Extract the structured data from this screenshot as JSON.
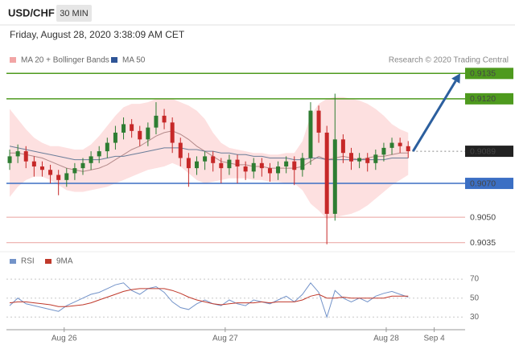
{
  "header": {
    "symbol": "USD/CHF",
    "interval": "30 MIN",
    "timestamp": "Friday, August 28, 2020 3:38:09 AM CET"
  },
  "chart_data": [
    {
      "type": "candlestick",
      "credit": "Research © 2020 Trading Central",
      "xlim": [
        -0.4,
        56
      ],
      "ylim": [
        0.9032,
        0.9138
      ],
      "up_color": "#2e7d32",
      "down_color": "#c62828",
      "candles": {
        "open": [
          0.9082,
          0.9086,
          0.9089,
          0.9083,
          0.908,
          0.9078,
          0.9075,
          0.9072,
          0.9076,
          0.9079,
          0.9082,
          0.9086,
          0.9089,
          0.9094,
          0.91,
          0.9105,
          0.9101,
          0.9096,
          0.9103,
          0.911,
          0.9106,
          0.9094,
          0.9085,
          0.9079,
          0.9083,
          0.9086,
          0.9082,
          0.9079,
          0.9084,
          0.908,
          0.9077,
          0.9082,
          0.9079,
          0.9076,
          0.908,
          0.9083,
          0.9078,
          0.9085,
          0.9113,
          0.91,
          0.9052,
          0.9096,
          0.9088,
          0.9083,
          0.9085,
          0.9082,
          0.9087,
          0.9091,
          0.9094,
          0.9092
        ],
        "high": [
          0.909,
          0.9093,
          0.9092,
          0.9086,
          0.9083,
          0.9081,
          0.9078,
          0.9079,
          0.9082,
          0.9085,
          0.9089,
          0.9092,
          0.9097,
          0.9104,
          0.9109,
          0.9108,
          0.9104,
          0.9106,
          0.9118,
          0.9114,
          0.9109,
          0.9097,
          0.9088,
          0.9086,
          0.9089,
          0.9089,
          0.9085,
          0.9087,
          0.9087,
          0.9083,
          0.9085,
          0.9085,
          0.9082,
          0.9083,
          0.9086,
          0.9086,
          0.9088,
          0.9118,
          0.9116,
          0.9104,
          0.9123,
          0.9099,
          0.9091,
          0.9088,
          0.9088,
          0.909,
          0.9094,
          0.9097,
          0.9097,
          0.9095
        ],
        "low": [
          0.9078,
          0.9082,
          0.9079,
          0.9074,
          0.9074,
          0.907,
          0.9063,
          0.9068,
          0.9072,
          0.9075,
          0.9078,
          0.9082,
          0.9085,
          0.909,
          0.9096,
          0.9097,
          0.9092,
          0.9092,
          0.9099,
          0.9102,
          0.9088,
          0.908,
          0.9068,
          0.9075,
          0.9078,
          0.9077,
          0.907,
          0.9075,
          0.907,
          0.9072,
          0.9073,
          0.9074,
          0.9071,
          0.9072,
          0.9076,
          0.9069,
          0.9074,
          0.9081,
          0.9094,
          0.9034,
          0.9048,
          0.9082,
          0.9078,
          0.9079,
          0.9077,
          0.9078,
          0.9083,
          0.9087,
          0.9088,
          0.9085
        ],
        "close": [
          0.9086,
          0.9089,
          0.9083,
          0.908,
          0.9078,
          0.9075,
          0.9072,
          0.9076,
          0.9079,
          0.9082,
          0.9086,
          0.9089,
          0.9094,
          0.91,
          0.9105,
          0.9101,
          0.9096,
          0.9103,
          0.911,
          0.9106,
          0.9094,
          0.9085,
          0.9079,
          0.9083,
          0.9086,
          0.9082,
          0.9079,
          0.9084,
          0.908,
          0.9077,
          0.9082,
          0.9079,
          0.9076,
          0.908,
          0.9083,
          0.9078,
          0.9085,
          0.9113,
          0.91,
          0.9052,
          0.9096,
          0.9088,
          0.9083,
          0.9085,
          0.9082,
          0.9087,
          0.9091,
          0.9094,
          0.9092,
          0.9089
        ]
      },
      "ma20": {
        "name": "MA 20 + Bollinger Bands",
        "color": "#f2a5a5",
        "line_color": "#b48a8a",
        "values": [
          0.9088,
          0.9088,
          0.9087,
          0.9086,
          0.9085,
          0.9083,
          0.9081,
          0.9079,
          0.9078,
          0.9077,
          0.9078,
          0.9079,
          0.9081,
          0.9084,
          0.9087,
          0.909,
          0.9092,
          0.9095,
          0.9098,
          0.91,
          0.9101,
          0.9099,
          0.9096,
          0.9092,
          0.9089,
          0.9086,
          0.9083,
          0.9082,
          0.9081,
          0.9081,
          0.908,
          0.908,
          0.9079,
          0.9079,
          0.9079,
          0.9079,
          0.908,
          0.9083,
          0.9086,
          0.9084,
          0.9085,
          0.9086,
          0.9085,
          0.9084,
          0.9085,
          0.9086,
          0.9086,
          0.9087,
          0.9088,
          0.9088
        ]
      },
      "bands": {
        "color": "#fde0e0",
        "upper": [
          0.9114,
          0.9108,
          0.9102,
          0.9097,
          0.9094,
          0.9092,
          0.9092,
          0.9091,
          0.909,
          0.909,
          0.9093,
          0.9098,
          0.9104,
          0.911,
          0.9115,
          0.9117,
          0.9117,
          0.9118,
          0.912,
          0.912,
          0.912,
          0.9118,
          0.9116,
          0.9113,
          0.9108,
          0.91,
          0.9094,
          0.9091,
          0.909,
          0.9089,
          0.9088,
          0.9088,
          0.9087,
          0.9087,
          0.9088,
          0.9088,
          0.9095,
          0.911,
          0.9117,
          0.912,
          0.9121,
          0.9121,
          0.912,
          0.9119,
          0.9117,
          0.9114,
          0.911,
          0.9105,
          0.9102,
          0.91
        ],
        "lower": [
          0.9062,
          0.9068,
          0.9072,
          0.9074,
          0.9074,
          0.9072,
          0.9069,
          0.9066,
          0.9065,
          0.9065,
          0.9066,
          0.9067,
          0.9068,
          0.907,
          0.9072,
          0.9074,
          0.9076,
          0.9078,
          0.9079,
          0.908,
          0.9082,
          0.908,
          0.9076,
          0.9072,
          0.907,
          0.9071,
          0.9072,
          0.9073,
          0.9073,
          0.9073,
          0.9072,
          0.9072,
          0.9071,
          0.9071,
          0.907,
          0.907,
          0.9066,
          0.9058,
          0.9054,
          0.9049,
          0.905,
          0.9051,
          0.9052,
          0.9054,
          0.9057,
          0.9061,
          0.9065,
          0.9069,
          0.9072,
          0.9075
        ]
      },
      "ma50": {
        "name": "MA 50",
        "color": "#2f5597",
        "line_color": "#6a7d99",
        "values": [
          0.9092,
          0.9091,
          0.909,
          0.9089,
          0.9088,
          0.9087,
          0.9086,
          0.9085,
          0.9084,
          0.9084,
          0.9084,
          0.9084,
          0.9085,
          0.9086,
          0.9086,
          0.9087,
          0.9088,
          0.9089,
          0.909,
          0.9091,
          0.9091,
          0.9091,
          0.909,
          0.909,
          0.9089,
          0.9089,
          0.9088,
          0.9088,
          0.9087,
          0.9087,
          0.9086,
          0.9086,
          0.9085,
          0.9085,
          0.9085,
          0.9084,
          0.9084,
          0.9085,
          0.9085,
          0.9084,
          0.9084,
          0.9084,
          0.9084,
          0.9084,
          0.9084,
          0.9084,
          0.9084,
          0.9085,
          0.9085,
          0.9085
        ]
      },
      "levels": [
        {
          "value": 0.9135,
          "color": "#4e9a1e",
          "boxed": true,
          "line": "solid"
        },
        {
          "value": 0.912,
          "label": "0.9120",
          "color": "#4e9a1e",
          "boxed": true,
          "line": "solid"
        },
        {
          "value": 0.9089,
          "color": "#222222",
          "boxed": true,
          "line": "dotted"
        },
        {
          "value": 0.907,
          "label": "0.9070",
          "color": "#3b6fc4",
          "boxed": true,
          "line": "solid"
        },
        {
          "value": 0.905,
          "label": "0.9050",
          "color": "#d9534f",
          "boxed": false,
          "line": "solid"
        },
        {
          "value": 0.9035,
          "color": "#d9534f",
          "boxed": false,
          "line": "solid"
        }
      ],
      "forecast": {
        "color": "#2c5f9e",
        "x": [
          49.6,
          55.4
        ],
        "y": [
          0.9089,
          0.9135
        ]
      }
    },
    {
      "type": "line",
      "xlim": [
        -0.4,
        56
      ],
      "ylim": [
        15,
        76
      ],
      "yticks": [
        30,
        50,
        70
      ],
      "xticks": [
        {
          "value": 6.7,
          "label": "Aug 26"
        },
        {
          "value": 26.5,
          "label": "Aug 27"
        },
        {
          "value": 46.3,
          "label": "Aug 28"
        },
        {
          "value": 52.2,
          "label": "Sep 4"
        }
      ],
      "grid": true,
      "series": [
        {
          "name": "RSI",
          "color": "#7393c9",
          "values": [
            42,
            50,
            44,
            42,
            40,
            38,
            36,
            42,
            46,
            50,
            54,
            56,
            60,
            64,
            66,
            58,
            54,
            60,
            62,
            56,
            46,
            40,
            38,
            44,
            48,
            44,
            42,
            48,
            44,
            42,
            48,
            46,
            44,
            48,
            52,
            46,
            54,
            66,
            56,
            30,
            58,
            50,
            46,
            50,
            46,
            52,
            55,
            57,
            54,
            51
          ]
        },
        {
          "name": "9MA",
          "color": "#c0392b",
          "values": [
            45,
            46,
            46,
            45,
            44,
            43,
            41,
            41,
            42,
            43,
            45,
            48,
            51,
            54,
            57,
            59,
            60,
            60,
            60,
            60,
            58,
            55,
            51,
            48,
            46,
            44,
            43,
            44,
            45,
            45,
            45,
            46,
            45,
            46,
            46,
            46,
            48,
            52,
            54,
            50,
            50,
            51,
            50,
            50,
            50,
            50,
            50,
            52,
            52,
            52
          ]
        }
      ]
    }
  ]
}
